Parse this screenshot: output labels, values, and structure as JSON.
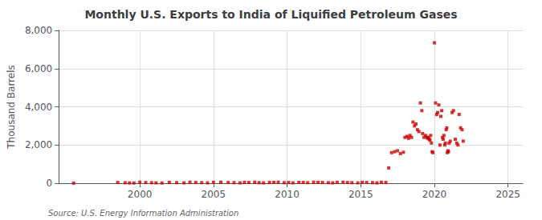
{
  "chart_data": {
    "type": "scatter",
    "title": "Monthly U.S. Exports to India of Liquified Petroleum Gases",
    "ylabel": "Thousand Barrels",
    "annotations": [
      "Source: U.S. Energy Information Administration"
    ],
    "color": "#cc0000",
    "marker": "square",
    "grid": true,
    "xlim": [
      1994.5,
      2026
    ],
    "ylim": [
      0,
      8000
    ],
    "xticks": [
      2000,
      2005,
      2010,
      2015,
      2020,
      2025
    ],
    "yticks": [
      0,
      {
        "value": 2000,
        "label": "2,000"
      },
      {
        "value": 4000,
        "label": "4,000"
      },
      {
        "value": 6000,
        "label": "6,000"
      },
      {
        "value": 8000,
        "label": "8,000"
      }
    ],
    "x": [
      1995.5,
      1998.5,
      1999.0,
      1999.3,
      1999.6,
      2000.0,
      2000.4,
      2000.8,
      2001.1,
      2001.5,
      2002.0,
      2002.5,
      2003.0,
      2003.4,
      2003.8,
      2004.2,
      2004.6,
      2005.0,
      2005.5,
      2006.0,
      2006.4,
      2006.8,
      2007.1,
      2007.4,
      2007.8,
      2008.1,
      2008.4,
      2008.8,
      2009.1,
      2009.4,
      2009.8,
      2010.1,
      2010.4,
      2010.8,
      2011.1,
      2011.4,
      2011.8,
      2012.1,
      2012.4,
      2012.8,
      2013.1,
      2013.4,
      2013.8,
      2014.1,
      2014.4,
      2014.8,
      2015.1,
      2015.4,
      2015.8,
      2016.1,
      2016.4,
      2016.7,
      2016.9,
      2017.1,
      2017.3,
      2017.5,
      2017.7,
      2017.9,
      2018.0,
      2018.15,
      2018.25,
      2018.35,
      2018.45,
      2018.55,
      2018.65,
      2018.75,
      2018.85,
      2018.95,
      2019.05,
      2019.15,
      2019.2,
      2019.3,
      2019.4,
      2019.5,
      2019.55,
      2019.6,
      2019.65,
      2019.7,
      2019.75,
      2019.8,
      2019.85,
      2019.9,
      2020.0,
      2020.08,
      2020.16,
      2020.22,
      2020.3,
      2020.38,
      2020.44,
      2020.5,
      2020.55,
      2020.6,
      2020.65,
      2020.7,
      2020.75,
      2020.8,
      2020.84,
      2020.88,
      2020.92,
      2020.96,
      2021.0,
      2021.08,
      2021.2,
      2021.3,
      2021.42,
      2021.52,
      2021.6,
      2021.68,
      2021.78,
      2021.88,
      2021.96
    ],
    "values": [
      3,
      40,
      25,
      15,
      10,
      55,
      35,
      25,
      18,
      12,
      45,
      28,
      18,
      55,
      38,
      28,
      18,
      45,
      55,
      38,
      28,
      18,
      45,
      38,
      55,
      28,
      18,
      38,
      45,
      55,
      28,
      38,
      18,
      45,
      38,
      28,
      55,
      45,
      38,
      28,
      18,
      45,
      55,
      38,
      28,
      18,
      45,
      38,
      28,
      18,
      55,
      38,
      800,
      1600,
      1650,
      1700,
      1550,
      1620,
      2400,
      2450,
      2350,
      2500,
      2400,
      3200,
      3000,
      3100,
      2800,
      2700,
      4200,
      3800,
      2600,
      2400,
      2500,
      2400,
      2350,
      2400,
      2300,
      2250,
      2500,
      2100,
      1650,
      1600,
      7350,
      4200,
      3600,
      3700,
      4100,
      2000,
      3500,
      3800,
      2400,
      2300,
      2500,
      2000,
      2100,
      2800,
      2900,
      1600,
      1700,
      1650,
      2100,
      2200,
      3700,
      3800,
      2300,
      2100,
      2000,
      3600,
      2900,
      2800,
      2200
    ]
  }
}
